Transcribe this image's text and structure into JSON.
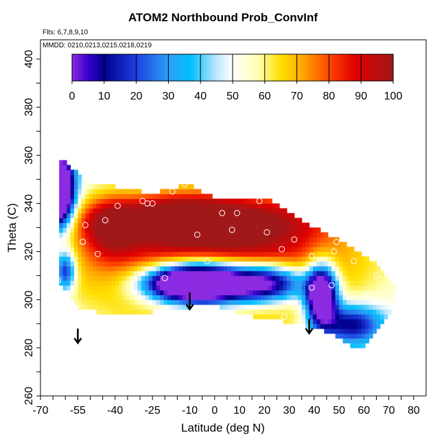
{
  "chart_data": {
    "type": "heatmap",
    "title": "ATOM2 Northbound Prob_ConvInf",
    "flights_note": "Flts: 6,7,8,9,10",
    "dates_note": "MMDD: 0210,0213,0215,0218,0219",
    "xlabel": "Latitude (deg N)",
    "ylabel": "Theta (C)",
    "xlim": [
      -70,
      85
    ],
    "ylim": [
      260,
      408
    ],
    "x_ticks": [
      -70,
      -55,
      -40,
      -25,
      -10,
      0,
      10,
      20,
      30,
      40,
      50,
      60,
      70,
      80
    ],
    "y_ticks": [
      260,
      280,
      300,
      320,
      340,
      360,
      380,
      400
    ],
    "colorbar": {
      "range": [
        0,
        100
      ],
      "ticks": [
        0,
        10,
        20,
        30,
        40,
        50,
        60,
        70,
        80,
        90,
        100
      ],
      "stops": [
        {
          "v": 0,
          "c": "#8b2be2"
        },
        {
          "v": 5,
          "c": "#3a00cc"
        },
        {
          "v": 10,
          "c": "#00008b"
        },
        {
          "v": 20,
          "c": "#1c3fe0"
        },
        {
          "v": 30,
          "c": "#2aa0f5"
        },
        {
          "v": 37,
          "c": "#00c0ff"
        },
        {
          "v": 45,
          "c": "#bfe6ff"
        },
        {
          "v": 50,
          "c": "#ffffff"
        },
        {
          "v": 58,
          "c": "#ffffb0"
        },
        {
          "v": 65,
          "c": "#ffe000"
        },
        {
          "v": 72,
          "c": "#ffa500"
        },
        {
          "v": 80,
          "c": "#ff4500"
        },
        {
          "v": 88,
          "c": "#e00000"
        },
        {
          "v": 100,
          "c": "#a01818"
        }
      ]
    },
    "field": {
      "background": 45,
      "shape": {
        "top": [
          [
            -63,
            360
          ],
          [
            -50,
            348
          ],
          [
            -40,
            347
          ],
          [
            -25,
            344
          ],
          [
            -10,
            348
          ],
          [
            0,
            342
          ],
          [
            20,
            343
          ],
          [
            30,
            336
          ],
          [
            42,
            329
          ],
          [
            55,
            322
          ],
          [
            65,
            315
          ],
          [
            72,
            306
          ]
        ],
        "bottom": [
          [
            -63,
            307
          ],
          [
            -55,
            296
          ],
          [
            -40,
            294
          ],
          [
            -25,
            295
          ],
          [
            -10,
            297
          ],
          [
            0,
            298
          ],
          [
            10,
            294
          ],
          [
            28,
            291
          ],
          [
            35,
            289
          ],
          [
            48,
            286
          ],
          [
            54,
            281
          ],
          [
            60,
            281
          ],
          [
            65,
            286
          ],
          [
            72,
            297
          ]
        ]
      },
      "features": [
        {
          "name": "outer-warm-band",
          "lat": 0,
          "theta": 318,
          "sx": 60,
          "sy": 30,
          "amp": 55
        },
        {
          "name": "upper-ridge",
          "lat": -5,
          "theta": 333,
          "sx": 48,
          "sy": 9,
          "amp": 30
        },
        {
          "name": "southern-red-core",
          "lat": -42,
          "theta": 330,
          "sx": 10,
          "sy": 12,
          "amp": 25
        },
        {
          "name": "mid-red-core",
          "lat": -15,
          "theta": 336,
          "sx": 18,
          "sy": 6,
          "amp": 20
        },
        {
          "name": "central-low",
          "lat": -5,
          "theta": 307,
          "sx": 22,
          "sy": 9,
          "amp": -130
        },
        {
          "name": "central-deep-low",
          "lat": -15,
          "theta": 307,
          "sx": 12,
          "sy": 5,
          "amp": -30
        },
        {
          "name": "eastern-low",
          "lat": 23,
          "theta": 307,
          "sx": 15,
          "sy": 8,
          "amp": -60
        },
        {
          "name": "north-low",
          "lat": 43,
          "theta": 302,
          "sx": 6,
          "sy": 12,
          "amp": -95
        },
        {
          "name": "north-edge-low",
          "lat": 55,
          "theta": 290,
          "sx": 12,
          "sy": 8,
          "amp": -45
        },
        {
          "name": "southern-edge-low",
          "lat": -63,
          "theta": 345,
          "sx": 6,
          "sy": 14,
          "amp": -120
        },
        {
          "name": "southern-base-low",
          "lat": -60,
          "theta": 312,
          "sx": 4,
          "sy": 8,
          "amp": -45
        }
      ]
    },
    "points": [
      {
        "lat": -63,
        "theta": 308
      },
      {
        "lat": -55,
        "theta": 298
      },
      {
        "lat": -53,
        "theta": 324
      },
      {
        "lat": -52,
        "theta": 331
      },
      {
        "lat": -47,
        "theta": 319
      },
      {
        "lat": -44,
        "theta": 333
      },
      {
        "lat": -39,
        "theta": 339
      },
      {
        "lat": -29,
        "theta": 341
      },
      {
        "lat": -27,
        "theta": 340
      },
      {
        "lat": -25,
        "theta": 340
      },
      {
        "lat": -20,
        "theta": 309
      },
      {
        "lat": -17,
        "theta": 345
      },
      {
        "lat": -12,
        "theta": 348
      },
      {
        "lat": -7,
        "theta": 327
      },
      {
        "lat": -3,
        "theta": 316
      },
      {
        "lat": 3,
        "theta": 336
      },
      {
        "lat": 7,
        "theta": 329
      },
      {
        "lat": 9,
        "theta": 336
      },
      {
        "lat": 18,
        "theta": 341
      },
      {
        "lat": 21,
        "theta": 328
      },
      {
        "lat": 27,
        "theta": 321
      },
      {
        "lat": 28,
        "theta": 293
      },
      {
        "lat": 32,
        "theta": 325
      },
      {
        "lat": 39,
        "theta": 318
      },
      {
        "lat": 39,
        "theta": 305
      },
      {
        "lat": 47,
        "theta": 306
      },
      {
        "lat": 48,
        "theta": 320
      },
      {
        "lat": 49,
        "theta": 324
      },
      {
        "lat": 56,
        "theta": 316
      },
      {
        "lat": 62,
        "theta": 302
      },
      {
        "lat": 65,
        "theta": 310
      },
      {
        "lat": 66,
        "theta": 302
      }
    ],
    "arrows": [
      {
        "lat": -55,
        "theta_top": 288,
        "theta_bottom": 282
      },
      {
        "lat": -10,
        "theta_top": 303,
        "theta_bottom": 296
      },
      {
        "lat": 38,
        "theta_top": 292,
        "theta_bottom": 286
      }
    ]
  }
}
